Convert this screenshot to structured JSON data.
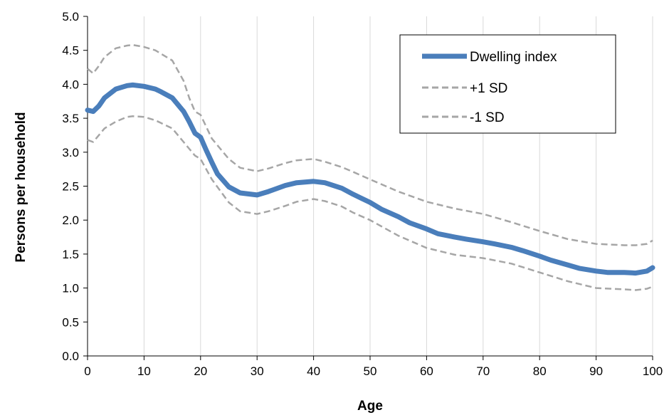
{
  "chart_data": {
    "type": "line",
    "title": "",
    "xlabel": "Age",
    "ylabel": "Persons per household",
    "xlim": [
      0,
      100
    ],
    "ylim": [
      0,
      5.0
    ],
    "x_ticks": [
      "0",
      "10",
      "20",
      "30",
      "40",
      "50",
      "60",
      "70",
      "80",
      "90",
      "100"
    ],
    "y_ticks": [
      "0.0",
      "0.5",
      "1.0",
      "1.5",
      "2.0",
      "2.5",
      "3.0",
      "3.5",
      "4.0",
      "4.5",
      "5.0"
    ],
    "grid": "vertical",
    "legend_position": "top-right",
    "series": [
      {
        "name": "Dwelling index",
        "style": "solid",
        "color": "#4a7ebb",
        "x": [
          0,
          1,
          2,
          3,
          5,
          7,
          8,
          10,
          12,
          13,
          15,
          17,
          18,
          19,
          20,
          21,
          22,
          23,
          25,
          27,
          30,
          32,
          35,
          37,
          40,
          42,
          45,
          47,
          50,
          52,
          55,
          57,
          60,
          62,
          65,
          67,
          70,
          72,
          75,
          77,
          80,
          82,
          85,
          87,
          90,
          92,
          95,
          97,
          99,
          100
        ],
        "values": [
          3.62,
          3.6,
          3.68,
          3.8,
          3.93,
          3.98,
          3.99,
          3.97,
          3.93,
          3.89,
          3.8,
          3.6,
          3.45,
          3.28,
          3.22,
          3.03,
          2.85,
          2.68,
          2.49,
          2.4,
          2.37,
          2.42,
          2.51,
          2.55,
          2.57,
          2.55,
          2.47,
          2.38,
          2.26,
          2.16,
          2.05,
          1.96,
          1.87,
          1.8,
          1.75,
          1.72,
          1.68,
          1.65,
          1.6,
          1.55,
          1.47,
          1.41,
          1.34,
          1.29,
          1.25,
          1.23,
          1.23,
          1.22,
          1.25,
          1.3
        ]
      },
      {
        "name": "+1 SD",
        "style": "dashed",
        "color": "#a6a6a6",
        "x": [
          0,
          1,
          2,
          3,
          5,
          7,
          8,
          10,
          12,
          13,
          15,
          17,
          18,
          19,
          20,
          22,
          25,
          27,
          30,
          32,
          35,
          37,
          40,
          42,
          45,
          47,
          50,
          55,
          60,
          65,
          70,
          75,
          80,
          85,
          90,
          95,
          97,
          99,
          100
        ],
        "values": [
          4.23,
          4.16,
          4.27,
          4.4,
          4.53,
          4.57,
          4.58,
          4.55,
          4.5,
          4.45,
          4.35,
          4.05,
          3.8,
          3.6,
          3.55,
          3.2,
          2.9,
          2.77,
          2.72,
          2.76,
          2.84,
          2.88,
          2.9,
          2.86,
          2.78,
          2.71,
          2.6,
          2.42,
          2.27,
          2.17,
          2.09,
          1.97,
          1.84,
          1.72,
          1.65,
          1.63,
          1.63,
          1.65,
          1.7
        ]
      },
      {
        "name": "-1 SD",
        "style": "dashed",
        "color": "#a6a6a6",
        "x": [
          0,
          1,
          2,
          3,
          5,
          7,
          8,
          10,
          12,
          13,
          15,
          17,
          18,
          19,
          20,
          22,
          25,
          27,
          30,
          32,
          35,
          37,
          40,
          42,
          45,
          47,
          50,
          55,
          60,
          65,
          70,
          75,
          80,
          85,
          90,
          95,
          97,
          99,
          100
        ],
        "values": [
          3.18,
          3.15,
          3.25,
          3.35,
          3.45,
          3.52,
          3.53,
          3.52,
          3.47,
          3.43,
          3.35,
          3.15,
          3.05,
          2.95,
          2.9,
          2.6,
          2.26,
          2.13,
          2.09,
          2.13,
          2.21,
          2.27,
          2.31,
          2.28,
          2.2,
          2.11,
          2.0,
          1.77,
          1.59,
          1.49,
          1.44,
          1.36,
          1.23,
          1.1,
          1.0,
          0.98,
          0.97,
          0.99,
          1.02
        ]
      }
    ]
  }
}
